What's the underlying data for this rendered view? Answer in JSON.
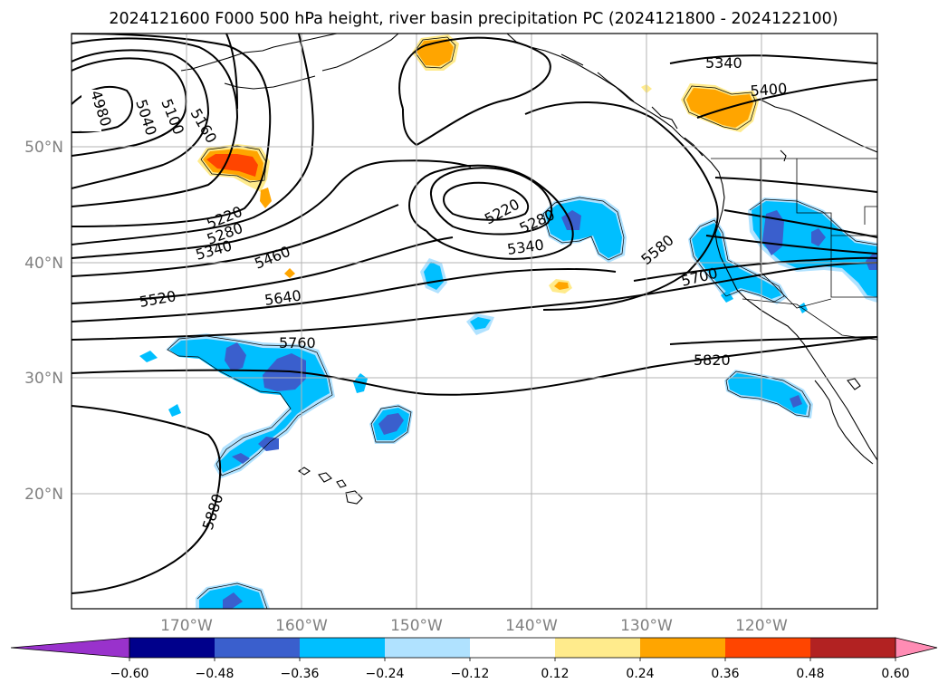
{
  "title": "2024121600 F000 500 hPa height, river basin precipitation PC (2024121800 - 2024122100)",
  "lat_labels": [
    "50°N",
    "40°N",
    "30°N",
    "20°N"
  ],
  "lon_labels": [
    "170°W",
    "160°W",
    "150°W",
    "140°W",
    "130°W",
    "120°W"
  ],
  "height_contour_labels": [
    "4980",
    "5040",
    "5100",
    "5160",
    "5220",
    "5280",
    "5340",
    "5460",
    "5520",
    "5640",
    "5760",
    "5880",
    "5220",
    "5280",
    "5340",
    "5340",
    "5400",
    "5580",
    "5700",
    "5820"
  ],
  "colorbar": {
    "ticks": [
      "−0.60",
      "−0.48",
      "−0.36",
      "−0.24",
      "−0.12",
      "0.12",
      "0.24",
      "0.36",
      "0.48",
      "0.60"
    ],
    "colors": [
      "#9932cc",
      "#00008b",
      "#3a5fcd",
      "#00bfff",
      "#b0e2ff",
      "#ffffff",
      "#ffeb8c",
      "#ffa500",
      "#ff4500",
      "#b22222",
      "#ff8cb4"
    ]
  },
  "colors": {
    "under": "#9932cc",
    "over": "#ff8cb4",
    "dark_blue": "#3a5fcd",
    "blue": "#00bfff",
    "light_blue": "#b0e2ff",
    "yellow": "#ffeb8c",
    "orange": "#ffa500",
    "red_orange": "#ff4500",
    "grid": "#b3b3b3"
  }
}
